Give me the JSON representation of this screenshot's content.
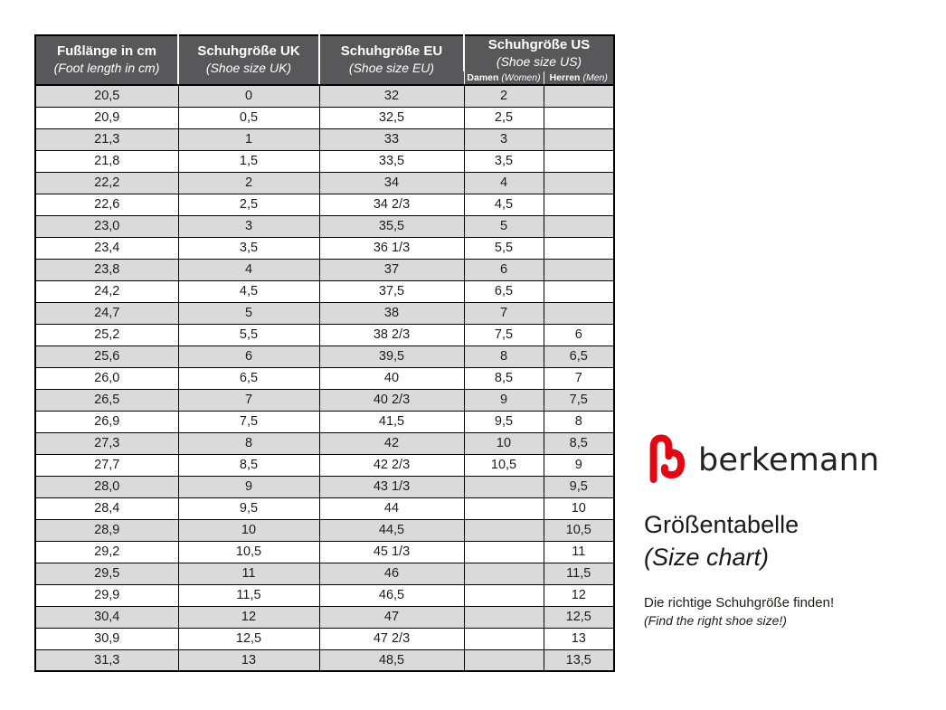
{
  "colors": {
    "header_bg": "#58585a",
    "row_alt": "#dadada",
    "border": "#000000",
    "logo_red": "#e30613",
    "text": "#1d1d1b"
  },
  "table": {
    "headers": [
      {
        "line1": "Fußlänge in cm",
        "line2": "(Foot length in cm)"
      },
      {
        "line1": "Schuhgröße UK",
        "line2": "(Shoe size UK)"
      },
      {
        "line1": "Schuhgröße EU",
        "line2": "(Shoe size EU)"
      },
      {
        "line1": "Schuhgröße US",
        "line2": "(Shoe size US)"
      }
    ],
    "subheaders": [
      {
        "label": "Damen",
        "label_en": "(Women)"
      },
      {
        "label": "Herren",
        "label_en": "(Men)"
      }
    ]
  },
  "branding": {
    "logo_text": "berkemann",
    "title": "Größentabelle",
    "subtitle": "(Size chart)",
    "tagline": "Die richtige Schuhgröße finden!",
    "tagline_en": "(Find the right shoe size!)"
  },
  "chart_data": {
    "type": "table",
    "title": "Größentabelle (Size chart)",
    "columns": [
      "Fußlänge in cm (Foot length in cm)",
      "Schuhgröße UK (Shoe size UK)",
      "Schuhgröße EU (Shoe size EU)",
      "Schuhgröße US Damen (Women)",
      "Schuhgröße US Herren (Men)"
    ],
    "rows": [
      [
        "20,5",
        "0",
        "32",
        "2",
        ""
      ],
      [
        "20,9",
        "0,5",
        "32,5",
        "2,5",
        ""
      ],
      [
        "21,3",
        "1",
        "33",
        "3",
        ""
      ],
      [
        "21,8",
        "1,5",
        "33,5",
        "3,5",
        ""
      ],
      [
        "22,2",
        "2",
        "34",
        "4",
        ""
      ],
      [
        "22,6",
        "2,5",
        "34 2/3",
        "4,5",
        ""
      ],
      [
        "23,0",
        "3",
        "35,5",
        "5",
        ""
      ],
      [
        "23,4",
        "3,5",
        "36 1/3",
        "5,5",
        ""
      ],
      [
        "23,8",
        "4",
        "37",
        "6",
        ""
      ],
      [
        "24,2",
        "4,5",
        "37,5",
        "6,5",
        ""
      ],
      [
        "24,7",
        "5",
        "38",
        "7",
        ""
      ],
      [
        "25,2",
        "5,5",
        "38 2/3",
        "7,5",
        "6"
      ],
      [
        "25,6",
        "6",
        "39,5",
        "8",
        "6,5"
      ],
      [
        "26,0",
        "6,5",
        "40",
        "8,5",
        "7"
      ],
      [
        "26,5",
        "7",
        "40 2/3",
        "9",
        "7,5"
      ],
      [
        "26,9",
        "7,5",
        "41,5",
        "9,5",
        "8"
      ],
      [
        "27,3",
        "8",
        "42",
        "10",
        "8,5"
      ],
      [
        "27,7",
        "8,5",
        "42 2/3",
        "10,5",
        "9"
      ],
      [
        "28,0",
        "9",
        "43 1/3",
        "",
        "9,5"
      ],
      [
        "28,4",
        "9,5",
        "44",
        "",
        "10"
      ],
      [
        "28,9",
        "10",
        "44,5",
        "",
        "10,5"
      ],
      [
        "29,2",
        "10,5",
        "45 1/3",
        "",
        "11"
      ],
      [
        "29,5",
        "11",
        "46",
        "",
        "11,5"
      ],
      [
        "29,9",
        "11,5",
        "46,5",
        "",
        "12"
      ],
      [
        "30,4",
        "12",
        "47",
        "",
        "12,5"
      ],
      [
        "30,9",
        "12,5",
        "47 2/3",
        "",
        "13"
      ],
      [
        "31,3",
        "13",
        "48,5",
        "",
        "13,5"
      ]
    ]
  }
}
